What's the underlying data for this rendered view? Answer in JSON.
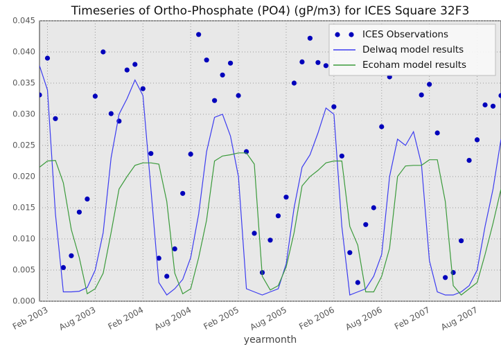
{
  "chart_data": {
    "type": "line",
    "title": "Timeseries of Ortho-Phosphate (PO4) (gP/m3) for ICES Square 32F3",
    "xlabel": "yearmonth",
    "x": [
      "2003-01",
      "2003-02",
      "2003-03",
      "2003-04",
      "2003-05",
      "2003-06",
      "2003-07",
      "2003-08",
      "2003-09",
      "2003-10",
      "2003-11",
      "2003-12",
      "2004-01",
      "2004-02",
      "2004-03",
      "2004-04",
      "2004-05",
      "2004-06",
      "2004-07",
      "2004-08",
      "2004-09",
      "2004-10",
      "2004-11",
      "2004-12",
      "2005-01",
      "2005-02",
      "2005-03",
      "2005-04",
      "2005-05",
      "2005-06",
      "2005-07",
      "2005-08",
      "2005-09",
      "2005-10",
      "2005-11",
      "2005-12",
      "2006-01",
      "2006-02",
      "2006-03",
      "2006-04",
      "2006-05",
      "2006-06",
      "2006-07",
      "2006-08",
      "2006-09",
      "2006-10",
      "2006-11",
      "2006-12",
      "2007-01",
      "2007-02",
      "2007-03",
      "2007-04",
      "2007-05",
      "2007-06",
      "2007-07",
      "2007-08",
      "2007-09",
      "2007-10",
      "2007-11"
    ],
    "series": [
      {
        "name": "ICES Observations",
        "color": "#0000bb",
        "mode": "markers",
        "values": [
          0.0331,
          0.039,
          0.0293,
          0.0054,
          0.0073,
          0.0143,
          0.0164,
          0.0329,
          0.04,
          0.0301,
          0.0289,
          0.0371,
          0.038,
          0.0341,
          0.0237,
          0.0069,
          0.004,
          0.0084,
          0.0173,
          0.0236,
          0.0428,
          0.0387,
          0.0322,
          0.0363,
          0.0382,
          0.033,
          0.024,
          0.0109,
          0.0046,
          0.0098,
          0.0137,
          0.0167,
          0.035,
          0.0384,
          0.0422,
          0.0383,
          0.0378,
          0.0312,
          0.0233,
          0.0078,
          0.003,
          0.0123,
          0.015,
          0.028,
          0.036,
          null,
          null,
          null,
          0.0331,
          0.0348,
          0.027,
          0.0038,
          0.0046,
          0.0097,
          0.0226,
          0.0259,
          0.0315,
          0.0313,
          0.033
        ]
      },
      {
        "name": "Delwaq model results",
        "color": "#3b3bf0",
        "mode": "line",
        "values": [
          0.0378,
          0.0339,
          0.014,
          0.0015,
          0.0015,
          0.0016,
          0.0022,
          0.005,
          0.011,
          0.023,
          0.03,
          0.0325,
          0.0355,
          0.033,
          0.018,
          0.003,
          0.001,
          0.002,
          0.0035,
          0.007,
          0.014,
          0.024,
          0.0295,
          0.03,
          0.0265,
          0.02,
          0.002,
          0.0015,
          0.001,
          0.0015,
          0.002,
          0.006,
          0.015,
          0.0215,
          0.0235,
          0.027,
          0.031,
          0.03,
          0.012,
          0.001,
          0.0015,
          0.002,
          0.004,
          0.0075,
          0.02,
          0.026,
          0.025,
          0.0272,
          0.022,
          0.0065,
          0.0015,
          0.001,
          0.001,
          0.0015,
          0.0025,
          0.005,
          0.012,
          0.018,
          0.026
        ]
      },
      {
        "name": "Ecoham model results",
        "color": "#3a9a3a",
        "mode": "line",
        "values": [
          0.0215,
          0.0225,
          0.0226,
          0.019,
          0.0115,
          0.007,
          0.0012,
          0.002,
          0.0045,
          0.011,
          0.018,
          0.02,
          0.0218,
          0.0222,
          0.0222,
          0.022,
          0.016,
          0.0045,
          0.0012,
          0.002,
          0.007,
          0.013,
          0.0225,
          0.0233,
          0.0235,
          0.0238,
          0.0238,
          0.022,
          0.004,
          0.0018,
          0.0025,
          0.0055,
          0.011,
          0.0185,
          0.02,
          0.021,
          0.0222,
          0.0225,
          0.0225,
          0.012,
          0.009,
          0.0015,
          0.0015,
          0.004,
          0.0085,
          0.02,
          0.0217,
          0.0218,
          0.0218,
          0.0227,
          0.0227,
          0.016,
          0.0025,
          0.001,
          0.002,
          0.003,
          0.0075,
          0.0125,
          0.018
        ]
      }
    ],
    "xlim": [
      "2003-01",
      "2007-11"
    ],
    "xticks": [
      {
        "value": "2003-02",
        "label": "Feb 2003"
      },
      {
        "value": "2003-08",
        "label": "Aug 2003"
      },
      {
        "value": "2004-02",
        "label": "Feb 2004"
      },
      {
        "value": "2004-08",
        "label": "Aug 2004"
      },
      {
        "value": "2005-02",
        "label": "Feb 2005"
      },
      {
        "value": "2005-08",
        "label": "Aug 2005"
      },
      {
        "value": "2006-02",
        "label": "Feb 2006"
      },
      {
        "value": "2006-08",
        "label": "Aug 2006"
      },
      {
        "value": "2007-02",
        "label": "Feb 2007"
      },
      {
        "value": "2007-08",
        "label": "Aug 2007"
      }
    ],
    "ylim": [
      0,
      0.045
    ],
    "yticks": [
      {
        "value": 0,
        "label": "0.000"
      },
      0.005,
      {
        "value": 0.01,
        "label": "0.010"
      },
      0.015,
      {
        "value": 0.02,
        "label": "0.020"
      },
      0.025,
      {
        "value": 0.03,
        "label": "0.030"
      },
      0.035,
      {
        "value": 0.04,
        "label": "0.040"
      },
      0.045
    ],
    "grid": true,
    "legend": "upper right"
  }
}
